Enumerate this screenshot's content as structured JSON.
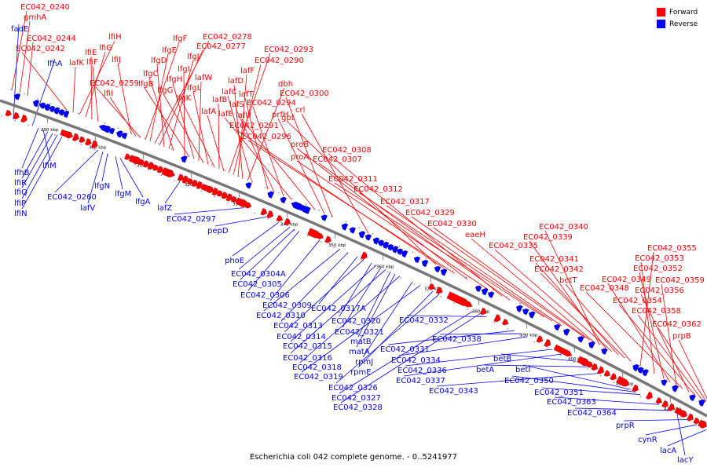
{
  "colors": {
    "forward": "#ff0000",
    "reverse": "#0000ff",
    "backbone": "#777777",
    "leader_forward": "#ff0000",
    "leader_reverse": "#0000ff"
  },
  "legend": {
    "forward": "Forward",
    "reverse": "Reverse"
  },
  "caption": "Escherichia coli 042 complete genome. - 0..5241977",
  "ticks": [
    "290 kbp",
    "300 kbp",
    "310 kbp",
    "320 kbp",
    "330 kbp",
    "340 kbp",
    "350 kbp",
    "360 kbp",
    "370 kbp",
    "380 kbp",
    "390 kbp",
    "400 kbp",
    "410 kbp",
    "420 kbp"
  ],
  "forward_labels": [
    "EC042_0240",
    "gmhA",
    "EC042_0244",
    "EC042_0242",
    "lafK",
    "lfiH",
    "lfiG",
    "lfiE",
    "lfiF",
    "lfiJ",
    "lfiI",
    "EC042_0259",
    "lfgF",
    "lfgE",
    "EC042_0278",
    "EC042_0277",
    "lfgD",
    "lfgJ",
    "lfgC",
    "lfgI",
    "lfgB",
    "lfgH",
    "lafW",
    "lfgG",
    "lfgL",
    "lfgK",
    "lafB",
    "lafA",
    "EC042_0293",
    "EC042_0290",
    "lafF",
    "lafD",
    "dbh",
    "lafC",
    "lafT",
    "lafS",
    "EC042_0294",
    "lafE",
    "lafU",
    "prfH",
    "EC042_0300",
    "crl",
    "gpt",
    "EC042_0291",
    "EC042_0296",
    "proB",
    "proA",
    "EC042_0308",
    "EC042_0307",
    "EC042_0311",
    "EC042_0312",
    "EC042_0317",
    "EC042_0329",
    "EC042_0330",
    "eaeH",
    "EC042_0340",
    "EC042_0339",
    "EC042_0335",
    "EC042_0341",
    "EC042_0342",
    "betT",
    "EC042_0355",
    "EC042_0353",
    "EC042_0352",
    "EC042_0349",
    "EC042_0359",
    "EC042_0348",
    "EC042_0356",
    "EC042_0354",
    "EC042_0358",
    "EC042_0362",
    "prpB"
  ],
  "reverse_labels": [
    "fadE",
    "lfhA",
    "lfhB",
    "lfiM",
    "lfiR",
    "lfiQ",
    "lfiP",
    "lfiN",
    "EC042_0260",
    "lafV",
    "lfgN",
    "lfgM",
    "lfgA",
    "lafZ",
    "EC042_0297",
    "pepD",
    "phoE",
    "EC042_0304A",
    "EC042_0305",
    "EC042_0306",
    "EC042_0309",
    "EC042_0310",
    "EC042_0313",
    "EC042_0317A",
    "EC042_0314",
    "EC042_0320",
    "EC042_0315",
    "EC042_0321",
    "EC042_0316",
    "matB",
    "matA",
    "EC042_0318",
    "rpmJ",
    "EC042_0319",
    "rpmE",
    "EC042_0326",
    "EC042_0327",
    "EC042_0328",
    "EC042_0332",
    "EC042_0331",
    "EC042_0338",
    "EC042_0334",
    "EC042_0336",
    "EC042_0337",
    "betB",
    "betA",
    "EC042_0343",
    "betI",
    "EC042_0350",
    "EC042_0351",
    "EC042_0363",
    "EC042_0364",
    "prpR",
    "cynR",
    "lacA",
    "lacY"
  ]
}
